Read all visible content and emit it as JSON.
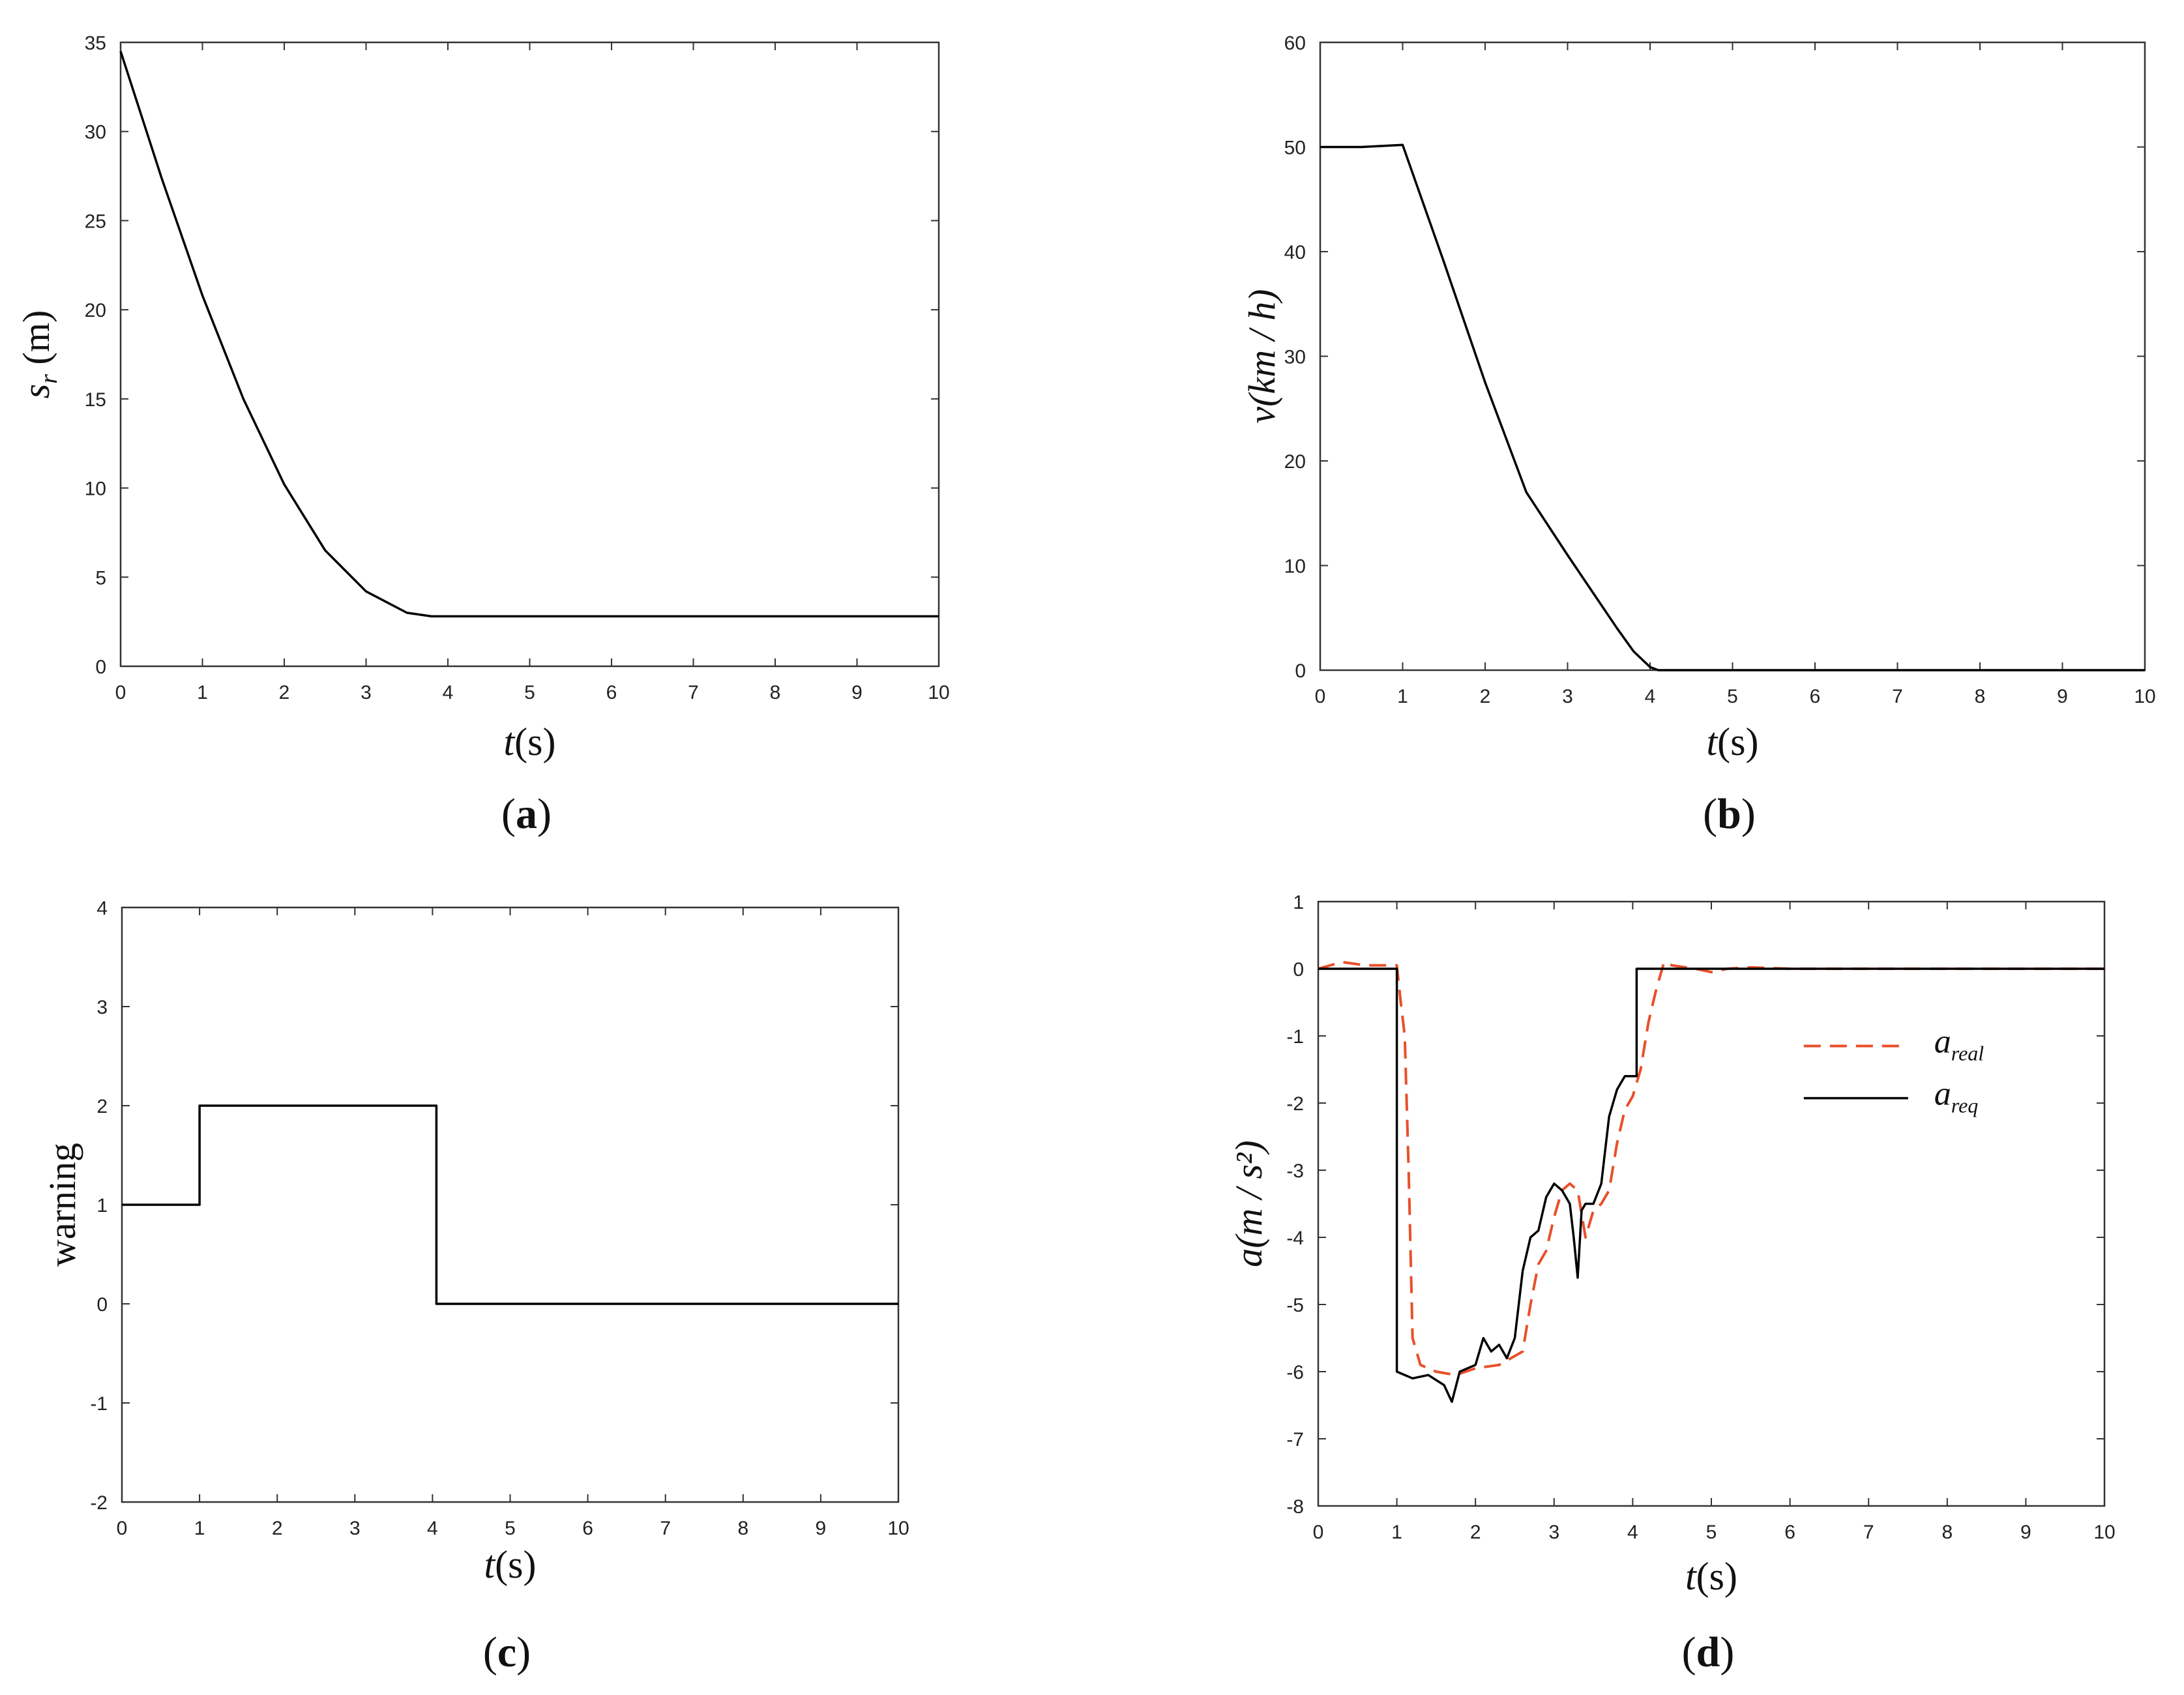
{
  "chart_data": [
    {
      "type": "line",
      "panel": "a",
      "caption_label": "a",
      "xlabel": {
        "var": "t",
        "unit": "(s)"
      },
      "ylabel": {
        "var": "s",
        "sub": "r",
        "unit": "(m)"
      },
      "xlim": [
        0,
        10
      ],
      "ylim": [
        0,
        35
      ],
      "xticks": [
        "0",
        "1",
        "2",
        "3",
        "4",
        "5",
        "6",
        "7",
        "8",
        "9",
        "10"
      ],
      "yticks": [
        "0",
        "5",
        "10",
        "15",
        "20",
        "25",
        "30",
        "35"
      ],
      "series": [
        {
          "name": "s_r",
          "color": "#000000",
          "dash": "solid",
          "x": [
            0,
            0.5,
            1,
            1.5,
            2,
            2.5,
            3,
            3.5,
            3.8,
            4,
            10
          ],
          "y": [
            34.5,
            27.4,
            20.8,
            15.0,
            10.2,
            6.5,
            4.2,
            3.0,
            2.8,
            2.8,
            2.8
          ]
        }
      ]
    },
    {
      "type": "line",
      "panel": "b",
      "caption_label": "b",
      "xlabel": {
        "var": "t",
        "unit": "(s)"
      },
      "ylabel": {
        "text": "v(km / h)"
      },
      "xlim": [
        0,
        10
      ],
      "ylim": [
        0,
        60
      ],
      "xticks": [
        "0",
        "1",
        "2",
        "3",
        "4",
        "5",
        "6",
        "7",
        "8",
        "9",
        "10"
      ],
      "yticks": [
        "0",
        "10",
        "20",
        "30",
        "40",
        "50",
        "60"
      ],
      "series": [
        {
          "name": "v",
          "color": "#000000",
          "dash": "solid",
          "x": [
            0,
            0.5,
            1.0,
            1.5,
            2.0,
            2.5,
            3.0,
            3.3,
            3.6,
            3.8,
            4.0,
            4.1,
            4.2,
            10
          ],
          "y": [
            50,
            50,
            50.2,
            39.0,
            27.5,
            17.0,
            11.0,
            7.5,
            4.0,
            1.8,
            0.3,
            0,
            0,
            0
          ]
        }
      ]
    },
    {
      "type": "line",
      "panel": "c",
      "caption_label": "c",
      "xlabel": {
        "var": "t",
        "unit": "(s)"
      },
      "ylabel": {
        "text": "warning"
      },
      "xlim": [
        0,
        10
      ],
      "ylim": [
        -2,
        4
      ],
      "xticks": [
        "0",
        "1",
        "2",
        "3",
        "4",
        "5",
        "6",
        "7",
        "8",
        "9",
        "10"
      ],
      "yticks": [
        "-2",
        "-1",
        "0",
        "1",
        "2",
        "3",
        "4"
      ],
      "series": [
        {
          "name": "warning",
          "color": "#000000",
          "dash": "solid",
          "x": [
            0,
            1.0,
            1.0,
            4.05,
            4.05,
            10
          ],
          "y": [
            1,
            1,
            2,
            2,
            0,
            0
          ]
        }
      ]
    },
    {
      "type": "line",
      "panel": "d",
      "caption_label": "d",
      "xlabel": {
        "var": "t",
        "unit": "(s)"
      },
      "ylabel": {
        "text": "a(m / s²)"
      },
      "xlim": [
        0,
        10
      ],
      "ylim": [
        -8,
        1
      ],
      "xticks": [
        "0",
        "1",
        "2",
        "3",
        "4",
        "5",
        "6",
        "7",
        "8",
        "9",
        "10"
      ],
      "yticks": [
        "-8",
        "-7",
        "-6",
        "-5",
        "-4",
        "-3",
        "-2",
        "-1",
        "0",
        "1"
      ],
      "legend": {
        "location": "right",
        "entries": [
          {
            "var": "a",
            "sub": "real"
          },
          {
            "var": "a",
            "sub": "req"
          }
        ]
      },
      "series": [
        {
          "name": "a_real",
          "color": "#e8502a",
          "dash": "dashed",
          "x": [
            0,
            0.3,
            0.6,
            1.0,
            1.05,
            1.1,
            1.15,
            1.2,
            1.3,
            1.5,
            1.75,
            2.0,
            2.3,
            2.6,
            2.7,
            2.8,
            2.9,
            3.0,
            3.1,
            3.2,
            3.3,
            3.4,
            3.5,
            3.6,
            3.7,
            3.8,
            3.9,
            4.0,
            4.1,
            4.2,
            4.3,
            4.4,
            4.5,
            4.8,
            5.0,
            5.2,
            5.5,
            6.0,
            10
          ],
          "y": [
            0,
            0.1,
            0.05,
            0.05,
            -0.5,
            -1.0,
            -3.0,
            -5.5,
            -5.9,
            -6.0,
            -6.05,
            -5.95,
            -5.9,
            -5.7,
            -5.0,
            -4.4,
            -4.2,
            -3.7,
            -3.3,
            -3.2,
            -3.3,
            -4.0,
            -3.6,
            -3.5,
            -3.3,
            -2.6,
            -2.1,
            -1.9,
            -1.5,
            -0.8,
            -0.3,
            0.1,
            0.05,
            0,
            -0.05,
            0,
            0.02,
            0,
            0
          ]
        },
        {
          "name": "a_req",
          "color": "#000000",
          "dash": "solid",
          "x": [
            0,
            1.0,
            1.0,
            1.2,
            1.4,
            1.6,
            1.7,
            1.8,
            2.0,
            2.1,
            2.2,
            2.3,
            2.4,
            2.5,
            2.6,
            2.7,
            2.8,
            2.9,
            3.0,
            3.1,
            3.2,
            3.25,
            3.3,
            3.35,
            3.4,
            3.5,
            3.6,
            3.7,
            3.8,
            3.9,
            4.0,
            4.05,
            4.05,
            10
          ],
          "y": [
            0,
            0,
            -6.0,
            -6.1,
            -6.05,
            -6.2,
            -6.45,
            -6.0,
            -5.9,
            -5.5,
            -5.7,
            -5.6,
            -5.8,
            -5.5,
            -4.5,
            -4.0,
            -3.9,
            -3.4,
            -3.2,
            -3.3,
            -3.5,
            -4.0,
            -4.6,
            -3.6,
            -3.5,
            -3.5,
            -3.2,
            -2.2,
            -1.8,
            -1.6,
            -1.6,
            -1.6,
            0,
            0
          ]
        }
      ]
    }
  ]
}
